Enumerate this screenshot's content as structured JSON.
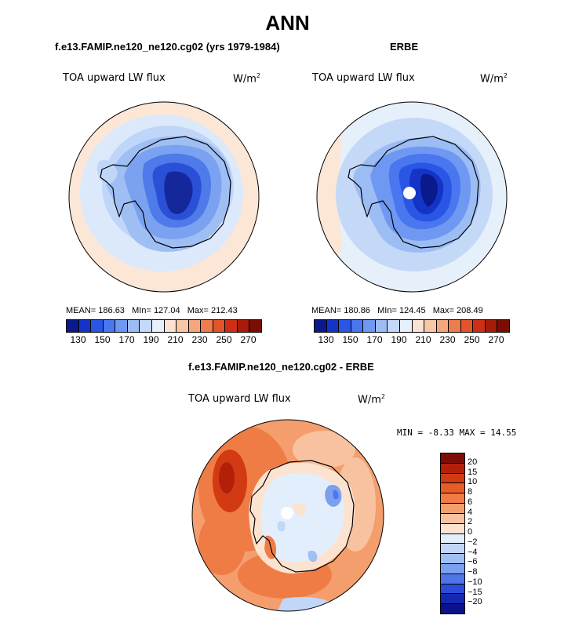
{
  "title": "ANN",
  "panels": [
    {
      "header": "f.e13.FAMIP.ne120_ne120.cg02 (yrs 1979-1984)",
      "variable": "TOA upward LW flux",
      "units": "W/m",
      "units_sup": "2",
      "stats": {
        "mean_label": "MEAN=",
        "mean": "186.63",
        "min_label": "MIn=",
        "min": "127.04",
        "max_label": "Max=",
        "max": "212.43"
      }
    },
    {
      "header": "ERBE",
      "variable": "TOA upward LW flux",
      "units": "W/m",
      "units_sup": "2",
      "stats": {
        "mean_label": "MEAN=",
        "mean": "180.86",
        "min_label": "MIn=",
        "min": "124.45",
        "max_label": "Max=",
        "max": "208.49"
      }
    },
    {
      "header": "f.e13.FAMIP.ne120_ne120.cg02 - ERBE",
      "variable": "TOA upward LW flux",
      "units": "W/m",
      "units_sup": "2",
      "minmax": "MIN =   -8.33 MAX =   14.55"
    }
  ],
  "colorbar_abs": {
    "tick_labels": [
      "130",
      "150",
      "170",
      "190",
      "210",
      "230",
      "250",
      "270"
    ],
    "colors": [
      "#0a1a8c",
      "#1434c8",
      "#2a56e6",
      "#4a76f0",
      "#6f98f2",
      "#9cbcf4",
      "#c4d8f8",
      "#e6f0fb",
      "#fbe3d4",
      "#f8c7a8",
      "#f4a67c",
      "#ef7c4c",
      "#e5532a",
      "#cc2f14",
      "#a61b0a",
      "#7a0d04"
    ]
  },
  "colorbar_diff": {
    "labels": [
      "20",
      "15",
      "10",
      "8",
      "6",
      "4",
      "2",
      "0",
      "−2",
      "−4",
      "−6",
      "−8",
      "−10",
      "−15",
      "−20"
    ],
    "colors": [
      "#800d05",
      "#b2200a",
      "#d23a14",
      "#e85c26",
      "#f07c45",
      "#f49e6e",
      "#f8c2a0",
      "#fce3d0",
      "#e3eefc",
      "#c2d7f8",
      "#a0bff4",
      "#7aa0ef",
      "#4e76e8",
      "#2b4cd8",
      "#1428b0",
      "#0a138a"
    ]
  }
}
